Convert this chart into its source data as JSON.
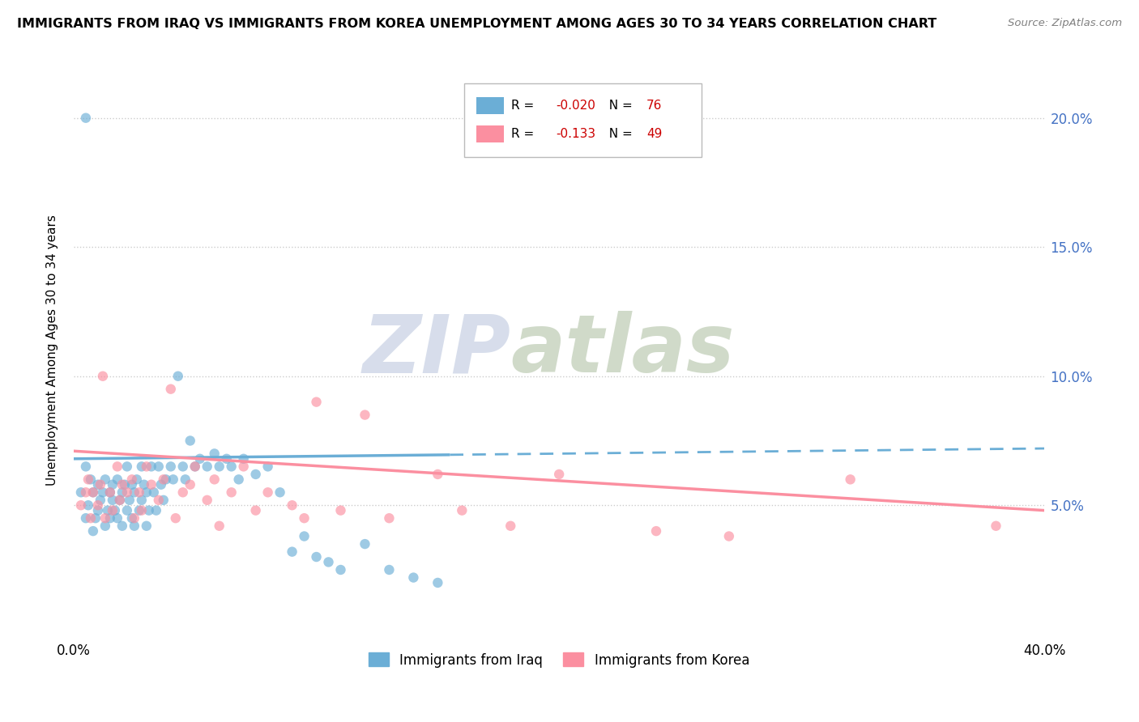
{
  "title": "IMMIGRANTS FROM IRAQ VS IMMIGRANTS FROM KOREA UNEMPLOYMENT AMONG AGES 30 TO 34 YEARS CORRELATION CHART",
  "source": "Source: ZipAtlas.com",
  "ylabel": "Unemployment Among Ages 30 to 34 years",
  "ytick_values": [
    0.05,
    0.1,
    0.15,
    0.2
  ],
  "xlim": [
    0.0,
    0.4
  ],
  "ylim": [
    0.0,
    0.22
  ],
  "iraq_color": "#6baed6",
  "korea_color": "#fb8fa0",
  "iraq_R": "-0.020",
  "iraq_N": "76",
  "korea_R": "-0.133",
  "korea_N": "49",
  "watermark_zip": "ZIP",
  "watermark_atlas": "atlas",
  "iraq_line_x_end": 0.155,
  "iraq_line_y_start": 0.068,
  "iraq_line_y_end": 0.072,
  "korea_line_y_start": 0.071,
  "korea_line_y_end": 0.048,
  "iraq_scatter_x": [
    0.003,
    0.005,
    0.005,
    0.006,
    0.007,
    0.008,
    0.008,
    0.009,
    0.01,
    0.01,
    0.011,
    0.012,
    0.013,
    0.013,
    0.014,
    0.015,
    0.015,
    0.016,
    0.016,
    0.017,
    0.018,
    0.018,
    0.019,
    0.02,
    0.02,
    0.021,
    0.022,
    0.022,
    0.023,
    0.024,
    0.024,
    0.025,
    0.025,
    0.026,
    0.027,
    0.028,
    0.028,
    0.029,
    0.03,
    0.03,
    0.031,
    0.032,
    0.033,
    0.034,
    0.035,
    0.036,
    0.037,
    0.038,
    0.04,
    0.041,
    0.043,
    0.045,
    0.046,
    0.048,
    0.05,
    0.052,
    0.055,
    0.058,
    0.06,
    0.063,
    0.065,
    0.068,
    0.07,
    0.075,
    0.08,
    0.085,
    0.09,
    0.095,
    0.1,
    0.105,
    0.11,
    0.12,
    0.13,
    0.14,
    0.15,
    0.005
  ],
  "iraq_scatter_y": [
    0.055,
    0.065,
    0.045,
    0.05,
    0.06,
    0.04,
    0.055,
    0.045,
    0.058,
    0.048,
    0.052,
    0.055,
    0.042,
    0.06,
    0.048,
    0.055,
    0.045,
    0.058,
    0.052,
    0.048,
    0.06,
    0.045,
    0.052,
    0.055,
    0.042,
    0.058,
    0.048,
    0.065,
    0.052,
    0.045,
    0.058,
    0.055,
    0.042,
    0.06,
    0.048,
    0.065,
    0.052,
    0.058,
    0.055,
    0.042,
    0.048,
    0.065,
    0.055,
    0.048,
    0.065,
    0.058,
    0.052,
    0.06,
    0.065,
    0.06,
    0.1,
    0.065,
    0.06,
    0.075,
    0.065,
    0.068,
    0.065,
    0.07,
    0.065,
    0.068,
    0.065,
    0.06,
    0.068,
    0.062,
    0.065,
    0.055,
    0.032,
    0.038,
    0.03,
    0.028,
    0.025,
    0.035,
    0.025,
    0.022,
    0.02,
    0.2
  ],
  "korea_scatter_x": [
    0.003,
    0.005,
    0.006,
    0.007,
    0.008,
    0.01,
    0.011,
    0.012,
    0.013,
    0.015,
    0.016,
    0.018,
    0.019,
    0.02,
    0.022,
    0.024,
    0.025,
    0.027,
    0.028,
    0.03,
    0.032,
    0.035,
    0.037,
    0.04,
    0.042,
    0.045,
    0.048,
    0.05,
    0.055,
    0.058,
    0.06,
    0.065,
    0.07,
    0.075,
    0.08,
    0.09,
    0.095,
    0.1,
    0.11,
    0.12,
    0.13,
    0.15,
    0.16,
    0.18,
    0.2,
    0.24,
    0.27,
    0.32,
    0.38
  ],
  "korea_scatter_y": [
    0.05,
    0.055,
    0.06,
    0.045,
    0.055,
    0.05,
    0.058,
    0.1,
    0.045,
    0.055,
    0.048,
    0.065,
    0.052,
    0.058,
    0.055,
    0.06,
    0.045,
    0.055,
    0.048,
    0.065,
    0.058,
    0.052,
    0.06,
    0.095,
    0.045,
    0.055,
    0.058,
    0.065,
    0.052,
    0.06,
    0.042,
    0.055,
    0.065,
    0.048,
    0.055,
    0.05,
    0.045,
    0.09,
    0.048,
    0.085,
    0.045,
    0.062,
    0.048,
    0.042,
    0.062,
    0.04,
    0.038,
    0.06,
    0.042
  ]
}
